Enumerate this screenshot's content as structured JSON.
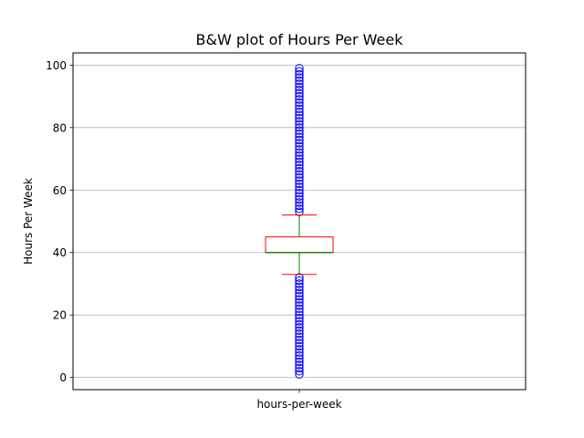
{
  "chart_data": {
    "type": "boxplot",
    "title": "B&W plot of Hours Per Week",
    "xlabel": "",
    "ylabel": "Hours Per Week",
    "categories": [
      "hours-per-week"
    ],
    "ylim": [
      -3.9,
      103.9
    ],
    "yticks": [
      0,
      20,
      40,
      60,
      80,
      100
    ],
    "grid": "y",
    "box": {
      "q1": 40,
      "median": 40,
      "q3": 45,
      "whisker_low": 33,
      "whisker_high": 52
    },
    "outliers_low_range": [
      1,
      32
    ],
    "outliers_high_range": [
      53,
      99
    ],
    "colors": {
      "box": "#ff0000",
      "median": "#008000",
      "whisker": "#008000",
      "cap": "#ff0000",
      "flier": "#0000ff",
      "grid": "#b0b0b0"
    }
  }
}
